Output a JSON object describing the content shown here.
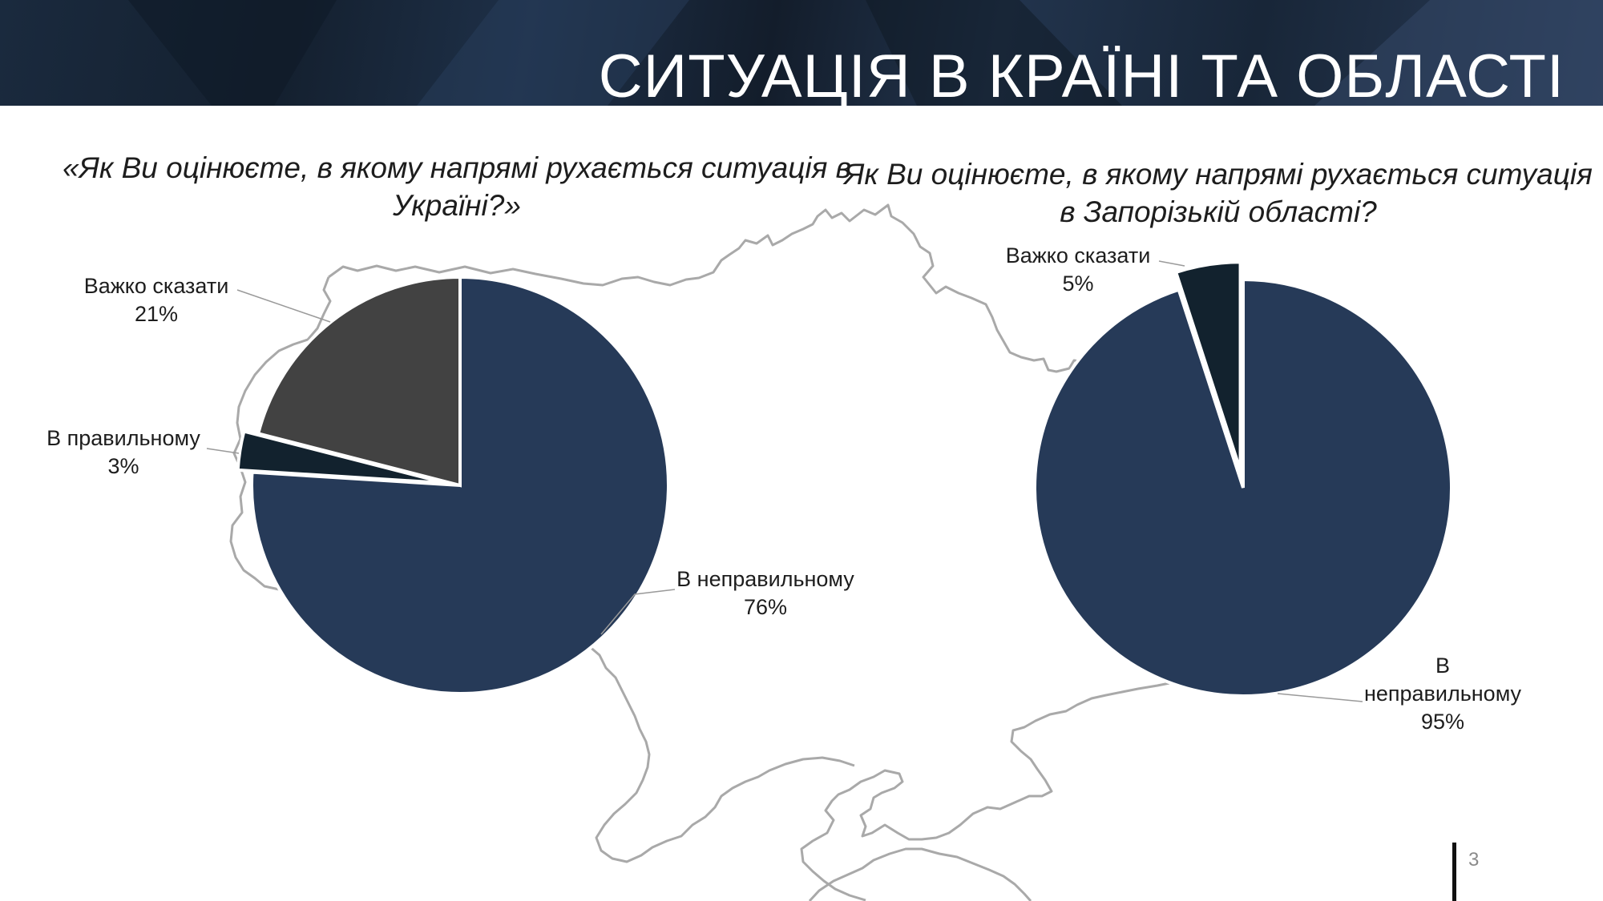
{
  "header": {
    "title": "СИТУАЦІЯ В КРАЇНІ ТА ОБЛАСТІ"
  },
  "page_number": "3",
  "colors": {
    "navy": "#263a58",
    "dark": "#12222e",
    "gray": "#424242",
    "map_outline": "#a9a9a9",
    "leader": "#9a9a9a"
  },
  "chart_data": [
    {
      "type": "pie",
      "title": "«Як Ви оцінюєте, в якому напрямі рухається ситуація в Україні?»",
      "slices": [
        {
          "key": "wrong",
          "label": "В неправильному",
          "value": 76,
          "value_label": "76%",
          "color": "#263a58"
        },
        {
          "key": "right",
          "label": "В правильному",
          "value": 3,
          "value_label": "3%",
          "color": "#12222e",
          "exploded": true
        },
        {
          "key": "hard",
          "label": "Важко сказати",
          "value": 21,
          "value_label": "21%",
          "color": "#424242"
        }
      ]
    },
    {
      "type": "pie",
      "title": "Як Ви оцінюєте, в якому напрямі рухається ситуація в Запорізькій області?",
      "slices": [
        {
          "key": "wrong",
          "label": "В неправильному",
          "value": 95,
          "value_label": "95%",
          "color": "#263a58"
        },
        {
          "key": "hard",
          "label": "Важко сказати",
          "value": 5,
          "value_label": "5%",
          "color": "#12222e",
          "exploded": true
        }
      ]
    }
  ]
}
